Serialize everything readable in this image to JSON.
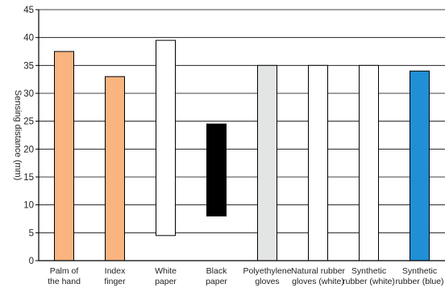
{
  "chart_data": {
    "type": "bar",
    "title": "",
    "xlabel": "",
    "ylabel": "Sensing distance (mm)",
    "ylim": [
      0,
      45
    ],
    "yticks": [
      0,
      5,
      10,
      15,
      20,
      25,
      30,
      35,
      40,
      45
    ],
    "grid": true,
    "categories": [
      [
        "Palm of",
        "the hand"
      ],
      [
        "Index",
        "finger"
      ],
      [
        "White",
        "paper"
      ],
      [
        "Black",
        "paper"
      ],
      [
        "Polyethylene",
        "gloves"
      ],
      [
        "Natural rubber",
        "gloves (white)"
      ],
      [
        "Synthetic",
        "rubber (white)"
      ],
      [
        "Synthetic",
        "rubber (blue)"
      ]
    ],
    "bars": [
      {
        "low": 0,
        "high": 37.5,
        "color": "#f9b47f"
      },
      {
        "low": 0,
        "high": 33,
        "color": "#f9b47f"
      },
      {
        "low": 4.5,
        "high": 39.5,
        "color": "#ffffff"
      },
      {
        "low": 8,
        "high": 24.5,
        "color": "#000000"
      },
      {
        "low": 0,
        "high": 35,
        "color": "#e3e4e4"
      },
      {
        "low": 0,
        "high": 35,
        "color": "#ffffff"
      },
      {
        "low": 0,
        "high": 35,
        "color": "#ffffff"
      },
      {
        "low": 0,
        "high": 34,
        "color": "#1f8fd6"
      }
    ]
  }
}
